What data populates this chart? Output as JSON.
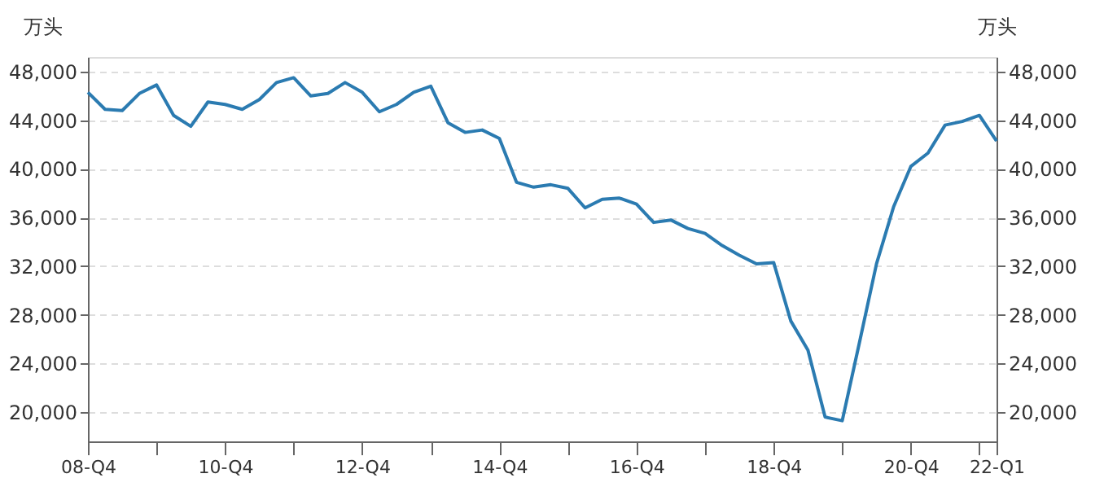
{
  "chart_data": {
    "type": "line",
    "ylabel": "万头",
    "y2label": "万头",
    "categories": [
      "08-Q4",
      null,
      null,
      null,
      null,
      null,
      null,
      null,
      "10-Q4",
      null,
      null,
      null,
      null,
      null,
      null,
      null,
      "12-Q4",
      null,
      null,
      null,
      null,
      null,
      null,
      null,
      "14-Q4",
      null,
      null,
      null,
      null,
      null,
      null,
      null,
      "16-Q4",
      null,
      null,
      null,
      null,
      null,
      null,
      null,
      "18-Q4",
      null,
      null,
      null,
      null,
      null,
      null,
      null,
      "20-Q4",
      null,
      null,
      null,
      null,
      "22-Q1"
    ],
    "series": [
      {
        "color": "#2b7bb1",
        "values": [
          46300,
          44900,
          44800,
          46200,
          46900,
          44400,
          43500,
          45500,
          45300,
          44900,
          45700,
          47100,
          47500,
          46000,
          46200,
          47100,
          46300,
          44700,
          45300,
          46300,
          46800,
          43800,
          43000,
          43200,
          42500,
          38900,
          38500,
          38700,
          38400,
          36800,
          37500,
          37600,
          37100,
          35600,
          35800,
          35100,
          34700,
          33700,
          32900,
          32200,
          32300,
          27500,
          25100,
          19600,
          19300,
          25700,
          32200,
          36900,
          40200,
          41300,
          43600,
          43900,
          44400,
          42300
        ]
      }
    ],
    "ylim": [
      17600,
      49200
    ],
    "yticks": [
      {
        "value": 20000,
        "label": "20,000"
      },
      {
        "value": 24000,
        "label": "24,000"
      },
      {
        "value": 28000,
        "label": "28,000"
      },
      {
        "value": 32000,
        "label": "32,000"
      },
      {
        "value": 36000,
        "label": "36,000"
      },
      {
        "value": 40000,
        "label": "40,000"
      },
      {
        "value": 44000,
        "label": "44,000"
      },
      {
        "value": 48000,
        "label": "48,000"
      }
    ],
    "y2lim": [
      17600,
      49200
    ],
    "y2ticks": [
      {
        "value": 20000,
        "label": "20,000"
      },
      {
        "value": 24000,
        "label": "24,000"
      },
      {
        "value": 28000,
        "label": "28,000"
      },
      {
        "value": 32000,
        "label": "32,000"
      },
      {
        "value": 36000,
        "label": "36,000"
      },
      {
        "value": 40000,
        "label": "40,000"
      },
      {
        "value": 44000,
        "label": "44,000"
      },
      {
        "value": 48000,
        "label": "48,000"
      }
    ],
    "grid": "y",
    "line_style": "solid",
    "marker": "none"
  }
}
